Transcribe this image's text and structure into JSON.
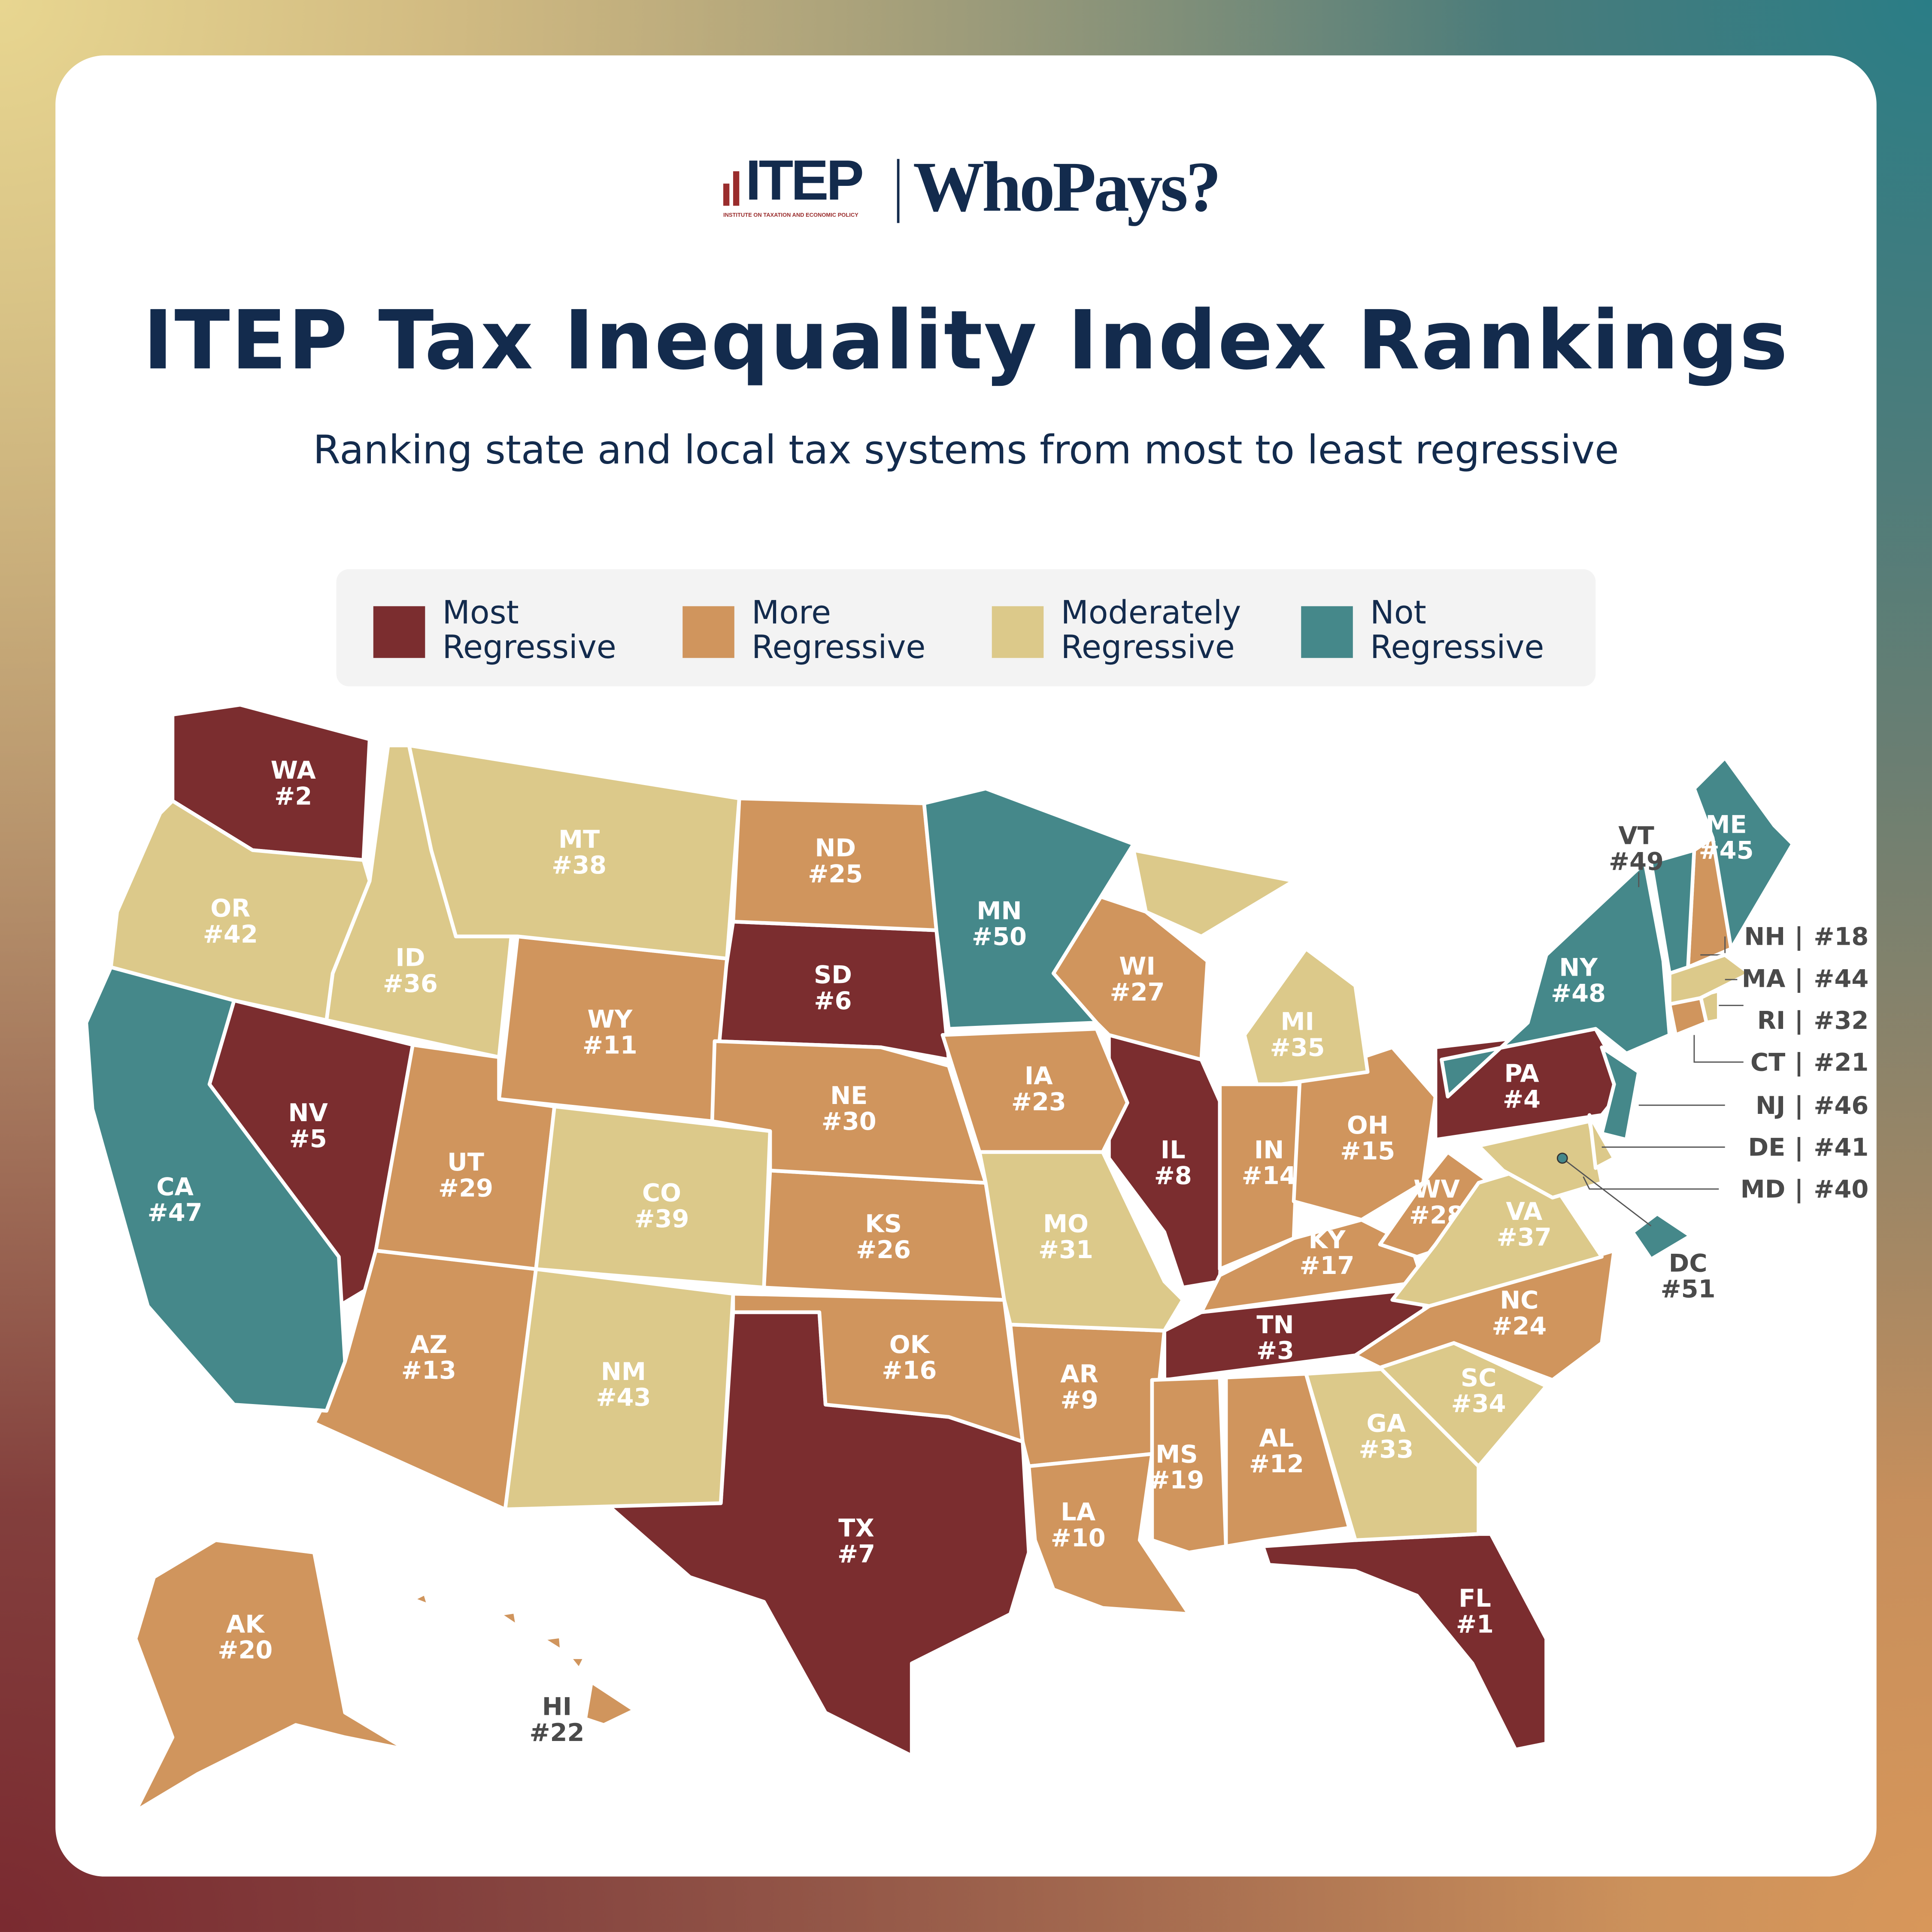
{
  "header": {
    "logo_itep": "ITEP",
    "logo_itep_subtitle": "INSTITUTE ON TAXATION AND ECONOMIC POLICY",
    "logo_whopays": "WhoPays?",
    "title": "ITEP Tax Inequality Index Rankings",
    "subtitle": "Ranking state and local tax systems from most to least regressive"
  },
  "legend": [
    {
      "label": "Most\nRegressive",
      "category": "most",
      "color": "#7b2d2f"
    },
    {
      "label": "More\nRegressive",
      "category": "more",
      "color": "#d0955d"
    },
    {
      "label": "Moderately\nRegressive",
      "category": "moderate",
      "color": "#dcc98a"
    },
    {
      "label": "Not\nRegressive",
      "category": "not",
      "color": "#45888a"
    }
  ],
  "states": [
    {
      "abbr": "FL",
      "rank": "#1",
      "category": "most"
    },
    {
      "abbr": "WA",
      "rank": "#2",
      "category": "most"
    },
    {
      "abbr": "TN",
      "rank": "#3",
      "category": "most"
    },
    {
      "abbr": "PA",
      "rank": "#4",
      "category": "most"
    },
    {
      "abbr": "NV",
      "rank": "#5",
      "category": "most"
    },
    {
      "abbr": "SD",
      "rank": "#6",
      "category": "most"
    },
    {
      "abbr": "TX",
      "rank": "#7",
      "category": "most"
    },
    {
      "abbr": "IL",
      "rank": "#8",
      "category": "most"
    },
    {
      "abbr": "AR",
      "rank": "#9",
      "category": "more"
    },
    {
      "abbr": "LA",
      "rank": "#10",
      "category": "more"
    },
    {
      "abbr": "WY",
      "rank": "#11",
      "category": "more"
    },
    {
      "abbr": "AL",
      "rank": "#12",
      "category": "more"
    },
    {
      "abbr": "AZ",
      "rank": "#13",
      "category": "more"
    },
    {
      "abbr": "IN",
      "rank": "#14",
      "category": "more"
    },
    {
      "abbr": "OH",
      "rank": "#15",
      "category": "more"
    },
    {
      "abbr": "OK",
      "rank": "#16",
      "category": "more"
    },
    {
      "abbr": "KY",
      "rank": "#17",
      "category": "more"
    },
    {
      "abbr": "NH",
      "rank": "#18",
      "category": "more"
    },
    {
      "abbr": "MS",
      "rank": "#19",
      "category": "more"
    },
    {
      "abbr": "AK",
      "rank": "#20",
      "category": "more"
    },
    {
      "abbr": "CT",
      "rank": "#21",
      "category": "more"
    },
    {
      "abbr": "HI",
      "rank": "#22",
      "category": "more"
    },
    {
      "abbr": "IA",
      "rank": "#23",
      "category": "more"
    },
    {
      "abbr": "NC",
      "rank": "#24",
      "category": "more"
    },
    {
      "abbr": "ND",
      "rank": "#25",
      "category": "more"
    },
    {
      "abbr": "KS",
      "rank": "#26",
      "category": "more"
    },
    {
      "abbr": "WI",
      "rank": "#27",
      "category": "more"
    },
    {
      "abbr": "WV",
      "rank": "#28",
      "category": "more"
    },
    {
      "abbr": "UT",
      "rank": "#29",
      "category": "more"
    },
    {
      "abbr": "NE",
      "rank": "#30",
      "category": "more"
    },
    {
      "abbr": "MO",
      "rank": "#31",
      "category": "moderate"
    },
    {
      "abbr": "RI",
      "rank": "#32",
      "category": "moderate"
    },
    {
      "abbr": "GA",
      "rank": "#33",
      "category": "moderate"
    },
    {
      "abbr": "SC",
      "rank": "#34",
      "category": "moderate"
    },
    {
      "abbr": "MI",
      "rank": "#35",
      "category": "moderate"
    },
    {
      "abbr": "ID",
      "rank": "#36",
      "category": "moderate"
    },
    {
      "abbr": "VA",
      "rank": "#37",
      "category": "moderate"
    },
    {
      "abbr": "MT",
      "rank": "#38",
      "category": "moderate"
    },
    {
      "abbr": "CO",
      "rank": "#39",
      "category": "moderate"
    },
    {
      "abbr": "MD",
      "rank": "#40",
      "category": "moderate"
    },
    {
      "abbr": "DE",
      "rank": "#41",
      "category": "moderate"
    },
    {
      "abbr": "OR",
      "rank": "#42",
      "category": "moderate"
    },
    {
      "abbr": "NM",
      "rank": "#43",
      "category": "moderate"
    },
    {
      "abbr": "MA",
      "rank": "#44",
      "category": "moderate"
    },
    {
      "abbr": "ME",
      "rank": "#45",
      "category": "not"
    },
    {
      "abbr": "NJ",
      "rank": "#46",
      "category": "not"
    },
    {
      "abbr": "CA",
      "rank": "#47",
      "category": "not"
    },
    {
      "abbr": "NY",
      "rank": "#48",
      "category": "not"
    },
    {
      "abbr": "VT",
      "rank": "#49",
      "category": "not"
    },
    {
      "abbr": "MN",
      "rank": "#50",
      "category": "not"
    },
    {
      "abbr": "DC",
      "rank": "#51",
      "category": "not"
    }
  ],
  "separator": "|"
}
